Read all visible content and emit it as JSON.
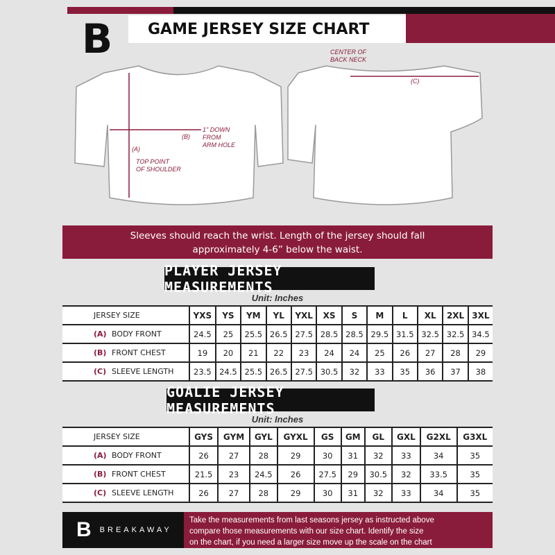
{
  "header": {
    "title": "GAME JERSEY SIZE CHART",
    "logo_letter": "B"
  },
  "diagram": {
    "label_a": "(A)",
    "label_b": "(B)",
    "label_c": "(C)",
    "top_point": "TOP POINT",
    "of_shoulder": "OF SHOULDER",
    "down_1": "1\" DOWN",
    "down_2": "FROM",
    "down_3": "ARM HOLE",
    "center_1": "CENTER OF",
    "center_2": "BACK NECK"
  },
  "banner": {
    "line1": "Sleeves should reach the wrist. Length of the jersey should fall",
    "line2": "approximately 4-6” below the waist."
  },
  "player": {
    "title": "PLAYER JERSEY MEASUREMENTS",
    "unit": "Unit: Inches",
    "header": "JERSEY SIZE",
    "sizes": [
      "YXS",
      "YS",
      "YM",
      "YL",
      "YXL",
      "XS",
      "S",
      "M",
      "L",
      "XL",
      "2XL",
      "3XL"
    ],
    "rows": [
      {
        "letter": "(A)",
        "label": "BODY FRONT",
        "values": [
          "24.5",
          "25",
          "25.5",
          "26.5",
          "27.5",
          "28.5",
          "28.5",
          "29.5",
          "31.5",
          "32.5",
          "32.5",
          "34.5"
        ]
      },
      {
        "letter": "(B)",
        "label": "FRONT CHEST",
        "values": [
          "19",
          "20",
          "21",
          "22",
          "23",
          "24",
          "24",
          "25",
          "26",
          "27",
          "28",
          "29"
        ]
      },
      {
        "letter": "(C)",
        "label": "SLEEVE LENGTH",
        "values": [
          "23.5",
          "24.5",
          "25.5",
          "26.5",
          "27.5",
          "30.5",
          "32",
          "33",
          "35",
          "36",
          "37",
          "38"
        ]
      }
    ]
  },
  "goalie": {
    "title": "GOALIE JERSEY MEASUREMENTS",
    "unit": "Unit: Inches",
    "header": "JERSEY SIZE",
    "sizes": [
      "GYS",
      "GYM",
      "GYL",
      "GYXL",
      "GS",
      "GM",
      "GL",
      "GXL",
      "G2XL",
      "G3XL"
    ],
    "rows": [
      {
        "letter": "(A)",
        "label": "BODY FRONT",
        "values": [
          "26",
          "27",
          "28",
          "29",
          "30",
          "31",
          "32",
          "33",
          "34",
          "35"
        ]
      },
      {
        "letter": "(B)",
        "label": "FRONT CHEST",
        "values": [
          "21.5",
          "23",
          "24.5",
          "26",
          "27.5",
          "29",
          "30.5",
          "32",
          "33.5",
          "35"
        ]
      },
      {
        "letter": "(C)",
        "label": "SLEEVE LENGTH",
        "values": [
          "26",
          "27",
          "28",
          "29",
          "30",
          "31",
          "32",
          "33",
          "34",
          "35"
        ]
      }
    ]
  },
  "footer": {
    "brand": "BREAKAWAY",
    "logo_letter": "B",
    "text": [
      "Take the measurements from last seasons jersey as instructed above",
      "compare those measurements  with our size chart. Identify the size",
      "on the chart, if you need a larger size move up the scale on the chart"
    ]
  },
  "colors": {
    "accent": "#8a1c3b",
    "dark": "#111111",
    "background": "#e4e4e4"
  }
}
